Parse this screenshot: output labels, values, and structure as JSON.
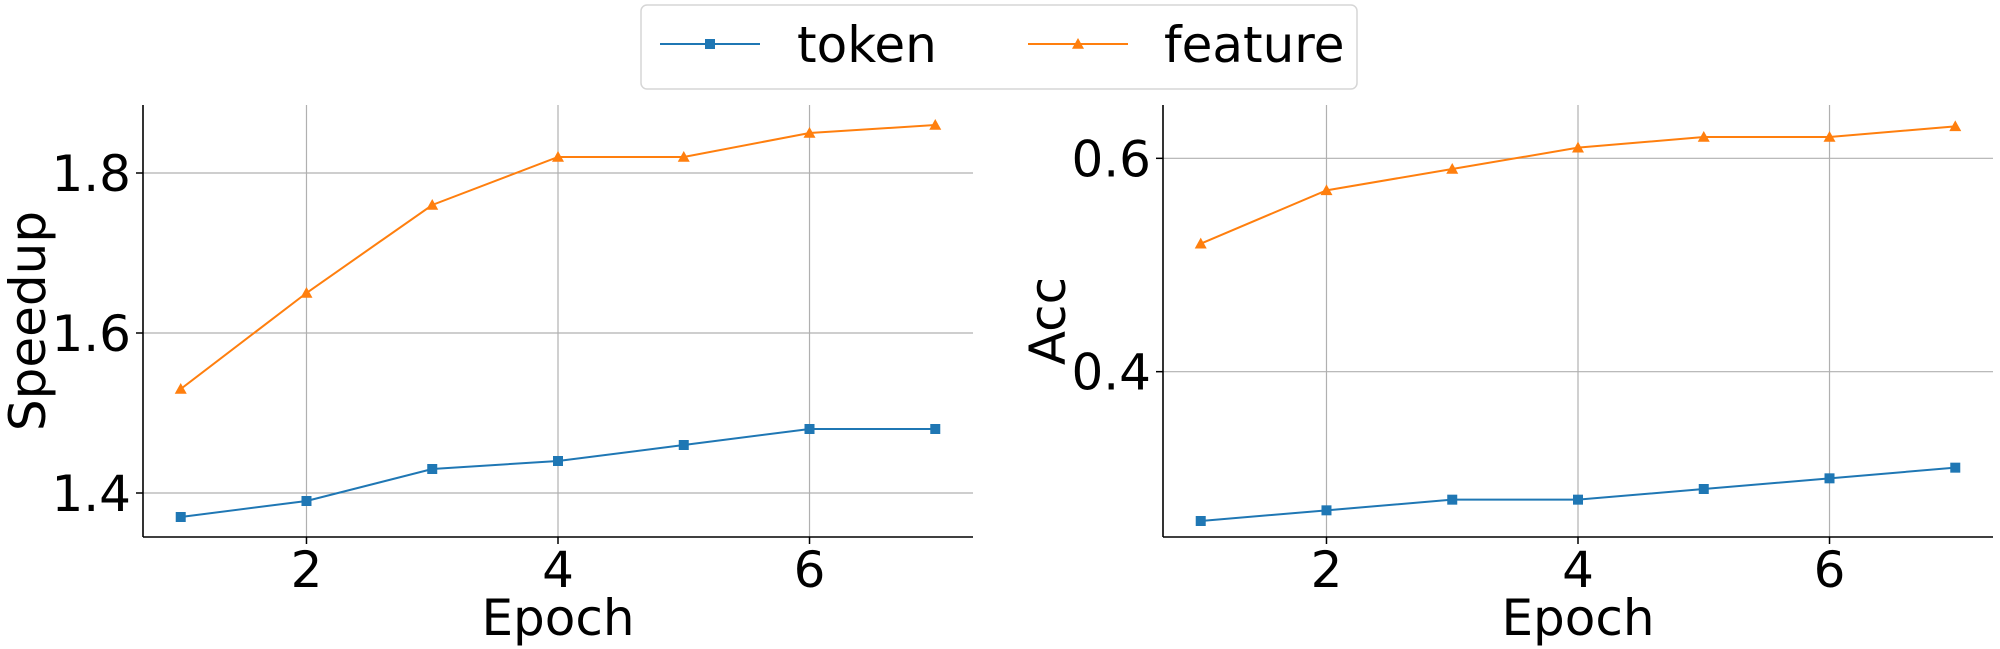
{
  "legend": {
    "placement": "top-center",
    "entries": [
      {
        "label": "token",
        "color": "#1f77b4",
        "marker": "square"
      },
      {
        "label": "feature",
        "color": "#ff7f0e",
        "marker": "triangle"
      }
    ]
  },
  "chart_data": [
    {
      "type": "line",
      "xlabel": "Epoch",
      "ylabel": "Speedup",
      "grid": true,
      "x": [
        1,
        2,
        3,
        4,
        5,
        6,
        7
      ],
      "xticks": [
        2,
        4,
        6
      ],
      "xtick_labels": [
        "2",
        "4",
        "6"
      ],
      "yticks": [
        1.4,
        1.6,
        1.8
      ],
      "ytick_labels": [
        "1.4",
        "1.6",
        "1.8"
      ],
      "xlim": [
        0.7,
        7.3
      ],
      "ylim": [
        1.345,
        1.885
      ],
      "series": [
        {
          "name": "token",
          "values": [
            1.37,
            1.39,
            1.43,
            1.44,
            1.46,
            1.48,
            1.48
          ]
        },
        {
          "name": "feature",
          "values": [
            1.53,
            1.65,
            1.76,
            1.82,
            1.82,
            1.85,
            1.86
          ]
        }
      ]
    },
    {
      "type": "line",
      "xlabel": "Epoch",
      "ylabel": "Acc",
      "grid": true,
      "x": [
        1,
        2,
        3,
        4,
        5,
        6,
        7
      ],
      "xticks": [
        2,
        4,
        6
      ],
      "xtick_labels": [
        "2",
        "4",
        "6"
      ],
      "yticks": [
        0.4,
        0.6
      ],
      "ytick_labels": [
        "0.4",
        "0.6"
      ],
      "xlim": [
        0.7,
        7.3
      ],
      "ylim": [
        0.245,
        0.65
      ],
      "series": [
        {
          "name": "token",
          "values": [
            0.26,
            0.27,
            0.28,
            0.28,
            0.29,
            0.3,
            0.31
          ]
        },
        {
          "name": "feature",
          "values": [
            0.52,
            0.57,
            0.59,
            0.61,
            0.62,
            0.62,
            0.63
          ]
        }
      ]
    }
  ]
}
